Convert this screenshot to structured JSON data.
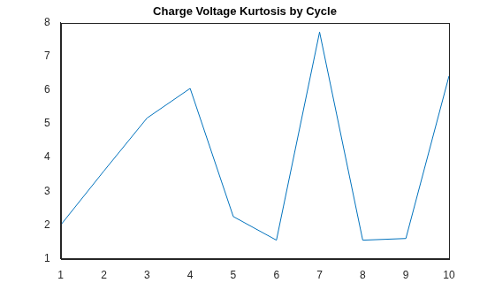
{
  "chart_data": {
    "type": "line",
    "title": "Charge Voltage Kurtosis by Cycle",
    "x": [
      1,
      2,
      3,
      4,
      5,
      6,
      7,
      8,
      9,
      10
    ],
    "values": [
      2.0,
      3.6,
      5.17,
      6.05,
      2.25,
      1.55,
      7.72,
      1.55,
      1.6,
      6.42
    ],
    "color": "#0072bd",
    "marker": "none",
    "xlim": [
      1,
      10
    ],
    "xticks": [
      1,
      2,
      3,
      4,
      5,
      6,
      7,
      8,
      9,
      10
    ],
    "ylim": [
      1,
      8
    ],
    "yticks": [
      1,
      2,
      3,
      4,
      5,
      6,
      7,
      8
    ],
    "grid": false
  }
}
